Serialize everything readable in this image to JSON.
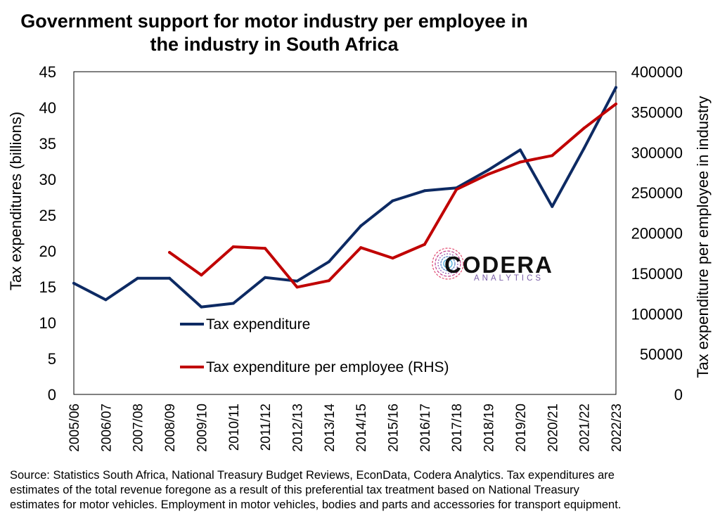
{
  "title": {
    "line1": "Government support for motor industry per employee in",
    "line2": "the industry in South Africa"
  },
  "chart_data": {
    "type": "line",
    "categories": [
      "2005/06",
      "2006/07",
      "2007/08",
      "2008/09",
      "2009/10",
      "2010/11",
      "2011/12",
      "2012/13",
      "2013/14",
      "2014/15",
      "2015/16",
      "2016/17",
      "2017/18",
      "2018/19",
      "2019/20",
      "2020/21",
      "2021/22",
      "2022/23"
    ],
    "ylabel": "Tax expenditures (billions)",
    "y2label": "Tax expenditure per employee in industry",
    "ylim": [
      0,
      45
    ],
    "y2lim": [
      0,
      400000
    ],
    "yticks": [
      "0",
      "5",
      "10",
      "15",
      "20",
      "25",
      "30",
      "35",
      "40",
      "45"
    ],
    "y2ticks": [
      "0",
      "50000",
      "100000",
      "150000",
      "200000",
      "250000",
      "300000",
      "350000",
      "400000"
    ],
    "legend_position": "inside-left",
    "series": [
      {
        "name": "Tax expenditure",
        "axis": "left",
        "color": "#0d2a63",
        "values": [
          15.5,
          13.2,
          16.2,
          16.2,
          12.2,
          12.7,
          16.3,
          15.8,
          18.5,
          23.5,
          27.0,
          28.4,
          28.8,
          31.3,
          34.1,
          26.2,
          34.3,
          42.8
        ]
      },
      {
        "name": "Tax expenditure per employee (RHS)",
        "axis": "right",
        "color": "#c00000",
        "values": [
          null,
          null,
          null,
          176000,
          148000,
          183000,
          181000,
          133000,
          141000,
          182000,
          169000,
          186000,
          254000,
          273000,
          288000,
          296000,
          330000,
          360000
        ]
      }
    ]
  },
  "logo": {
    "word": "CODERA",
    "sub": "ANALYTICS"
  },
  "note": {
    "line1": "Source: Statistics South Africa, National Treasury Budget Reviews, EconData, Codera Analytics. Tax expenditures are",
    "line2": "estimates of the total revenue foregone as a result of this preferential tax treatment based on National Treasury",
    "line3": "estimates for motor vehicles. Employment in motor vehicles, bodies and parts and accessories for transport equipment."
  }
}
